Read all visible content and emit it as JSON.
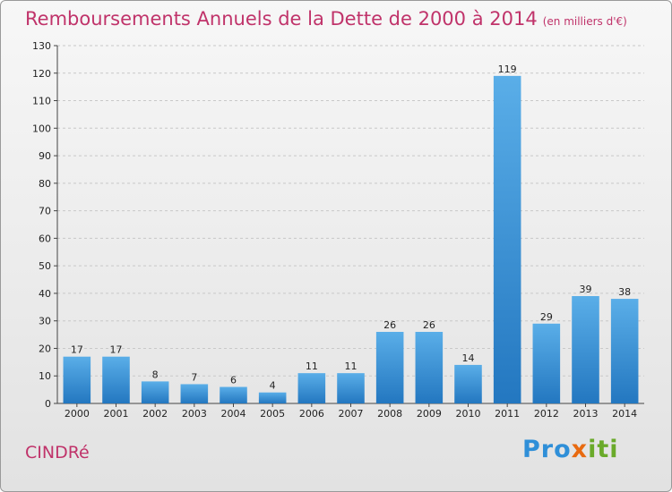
{
  "title": "Remboursements Annuels de la Dette de 2000 à 2014",
  "subtitle": "(en milliers d'€)",
  "commune": "CINDRé",
  "logo": {
    "parts": [
      {
        "text": "Pro",
        "color": "#2f8fd8"
      },
      {
        "text": "x",
        "color": "#e86a10"
      },
      {
        "text": "iti",
        "color": "#6aaa2a"
      }
    ]
  },
  "colors": {
    "bar_top": "#5aaee8",
    "bar_bottom": "#2377c0",
    "title": "#c0336a"
  },
  "chart_data": {
    "type": "bar",
    "title": "Remboursements Annuels de la Dette de 2000 à 2014",
    "subtitle": "(en milliers d'€)",
    "categories": [
      "2000",
      "2001",
      "2002",
      "2003",
      "2004",
      "2005",
      "2006",
      "2007",
      "2008",
      "2009",
      "2010",
      "2011",
      "2012",
      "2013",
      "2014"
    ],
    "values": [
      17,
      17,
      8,
      7,
      6,
      4,
      11,
      11,
      26,
      26,
      14,
      119,
      29,
      39,
      38
    ],
    "ylim": [
      0,
      130
    ],
    "yticks": [
      0,
      10,
      20,
      30,
      40,
      50,
      60,
      70,
      80,
      90,
      100,
      110,
      120,
      130
    ],
    "grid": true
  }
}
